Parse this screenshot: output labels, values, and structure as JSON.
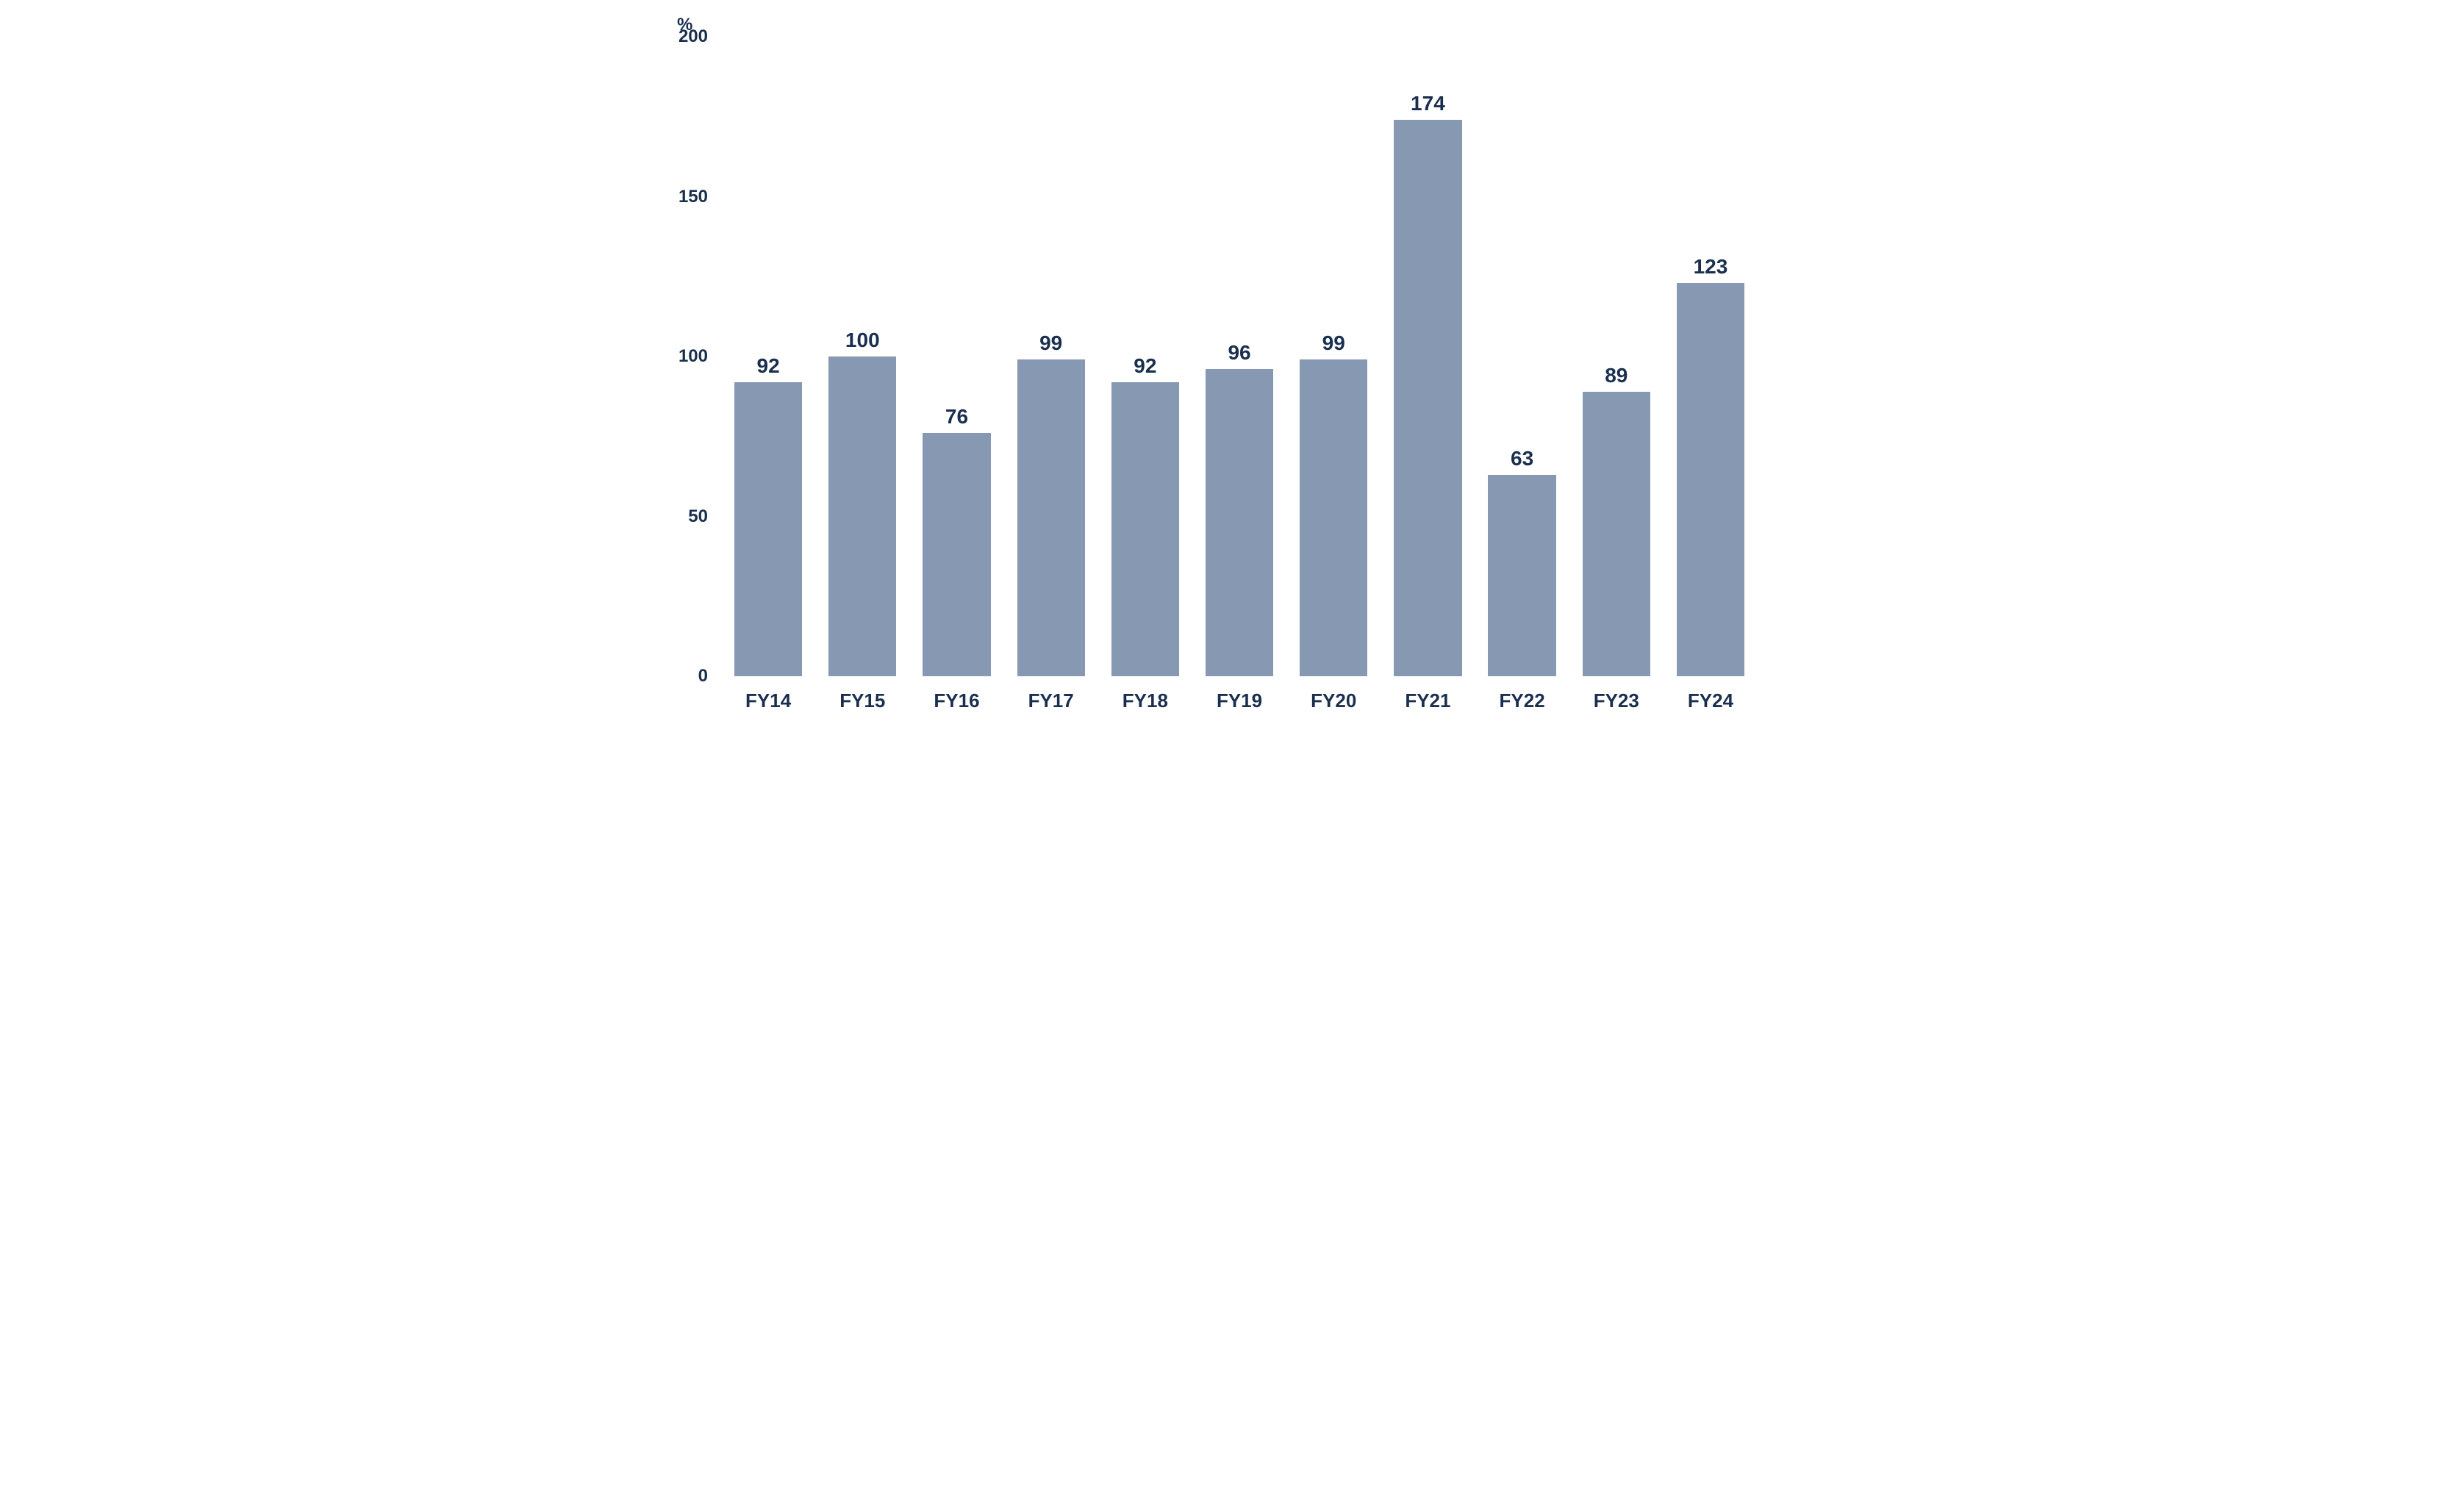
{
  "chart": {
    "type": "bar",
    "y_axis_unit": "%",
    "categories": [
      "FY14",
      "FY15",
      "FY16",
      "FY17",
      "FY18",
      "FY19",
      "FY20",
      "FY21",
      "FY22",
      "FY23",
      "FY24"
    ],
    "values": [
      92,
      100,
      76,
      99,
      92,
      96,
      99,
      174,
      63,
      89,
      123
    ],
    "bar_color": "#8798b3",
    "text_color": "#1a2f4f",
    "background_color": "#ffffff",
    "ylim": [
      0,
      200
    ],
    "yticks": [
      0,
      50,
      100,
      150,
      200
    ],
    "bar_width_ratio": 0.72,
    "value_label_fontsize": 28,
    "axis_label_fontsize": 26,
    "tick_label_fontsize": 24,
    "font_weight": "600"
  }
}
